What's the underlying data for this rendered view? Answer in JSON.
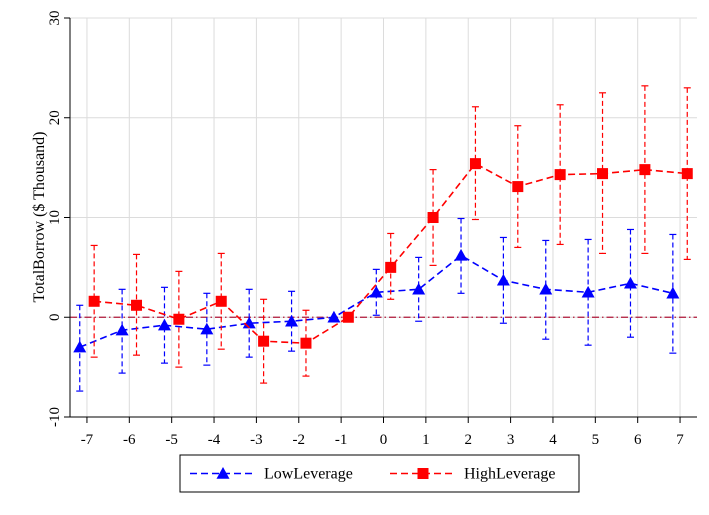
{
  "chart_data": {
    "type": "line",
    "title": "",
    "xlabel": "",
    "ylabel": "TotalBorrow ($ Thousand)",
    "x": [
      -7,
      -6,
      -5,
      -4,
      -3,
      -2,
      -1,
      0,
      1,
      2,
      3,
      4,
      5,
      6,
      7
    ],
    "xlim": [
      -7.4,
      7.4
    ],
    "ylim": [
      -10,
      30
    ],
    "yticks": [
      -10,
      0,
      10,
      20,
      30
    ],
    "grid": true,
    "reference_line_y": 0,
    "legend_placement": "bottom",
    "series": [
      {
        "name": "LowLeverage",
        "color": "#0000ff",
        "marker": "triangle",
        "x_offset": -0.17,
        "values": [
          -3.0,
          -1.3,
          -0.8,
          -1.2,
          -0.6,
          -0.4,
          0.0,
          2.5,
          2.8,
          6.2,
          3.7,
          2.8,
          2.5,
          3.4,
          2.4
        ],
        "lower": [
          -7.4,
          -5.6,
          -4.6,
          -4.8,
          -4.0,
          -3.4,
          0.0,
          0.2,
          -0.4,
          2.4,
          -0.6,
          -2.2,
          -2.8,
          -2.0,
          -3.6
        ],
        "upper": [
          1.2,
          2.8,
          3.0,
          2.4,
          2.8,
          2.6,
          0.0,
          4.8,
          6.0,
          9.9,
          8.0,
          7.7,
          7.8,
          8.8,
          8.3
        ]
      },
      {
        "name": "HighLeverage",
        "color": "#ff0000",
        "marker": "square",
        "x_offset": 0.17,
        "values": [
          1.6,
          1.2,
          -0.2,
          1.6,
          -2.4,
          -2.6,
          0.0,
          5.0,
          10.0,
          15.4,
          13.1,
          14.3,
          14.4,
          14.8,
          14.4
        ],
        "lower": [
          -4.0,
          -3.8,
          -5.0,
          -3.2,
          -6.6,
          -5.9,
          0.0,
          1.8,
          5.2,
          9.8,
          7.0,
          7.3,
          6.4,
          6.4,
          5.8
        ],
        "upper": [
          7.2,
          6.3,
          4.6,
          6.4,
          1.8,
          0.7,
          0.0,
          8.4,
          14.8,
          21.1,
          19.2,
          21.3,
          22.5,
          23.2,
          23.0
        ]
      }
    ]
  }
}
